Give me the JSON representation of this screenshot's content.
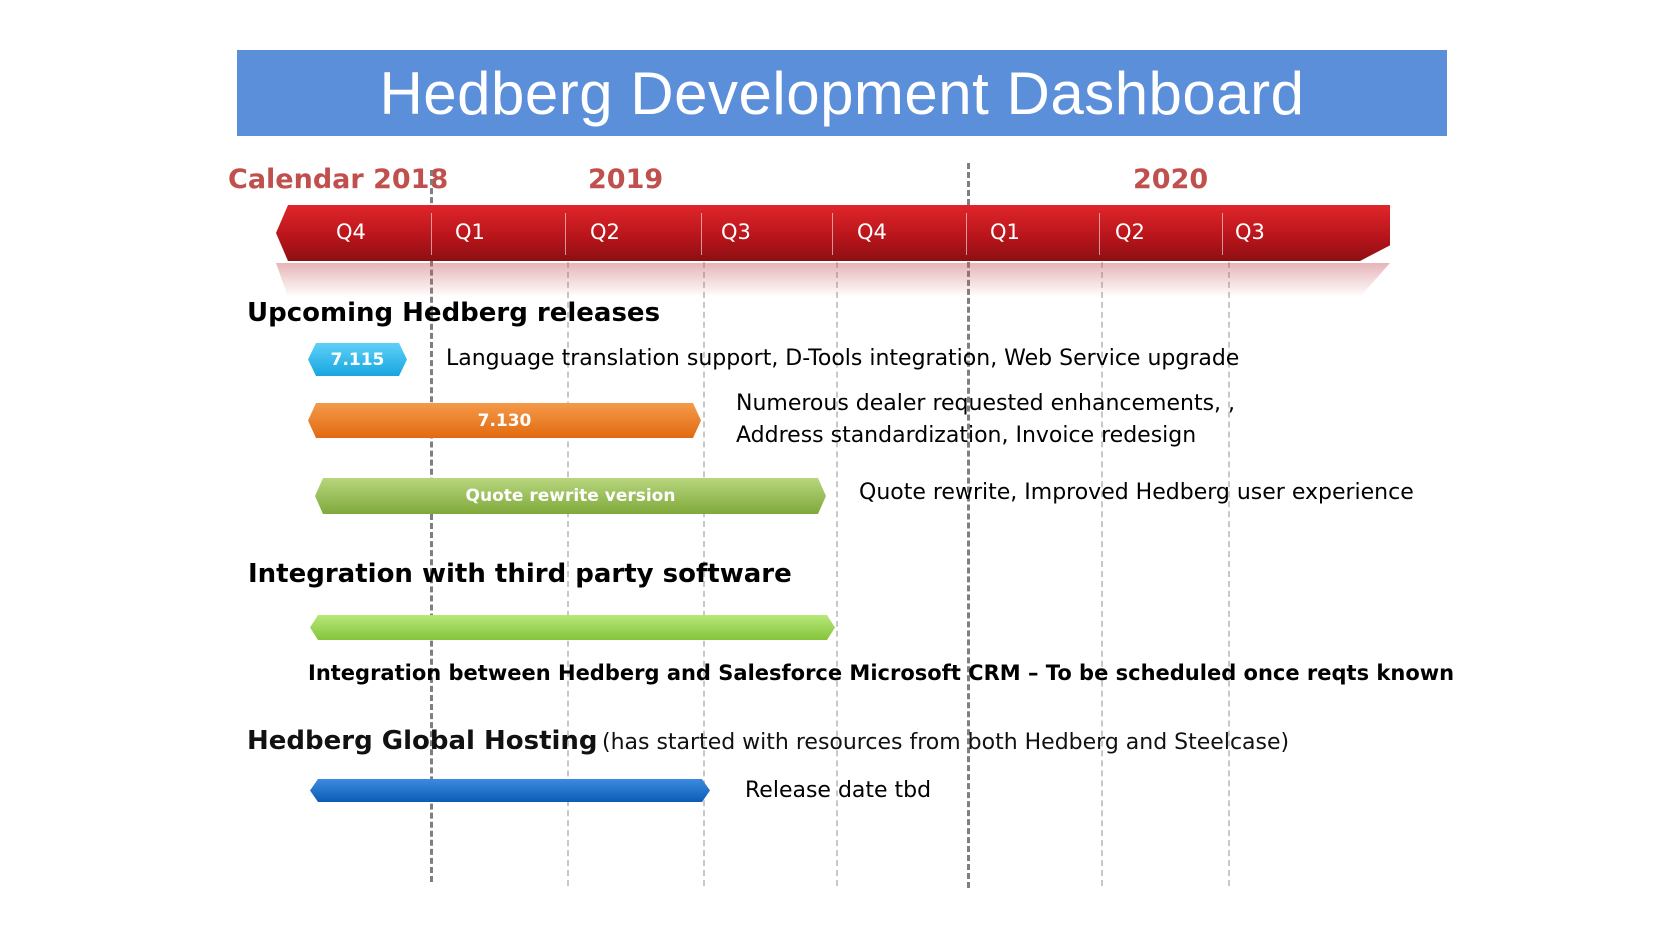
{
  "title": "Hedberg Development Dashboard",
  "timeline": {
    "years": [
      "Calendar 2018",
      "2019",
      "2020"
    ],
    "quarters": [
      "Q4",
      "Q1",
      "Q2",
      "Q3",
      "Q4",
      "Q1",
      "Q2",
      "Q3"
    ]
  },
  "sections": {
    "releases": {
      "heading": "Upcoming Hedberg releases",
      "items": [
        {
          "label": "7.115",
          "description": "Language translation support, D-Tools integration, Web Service upgrade",
          "color": "#17a6e0"
        },
        {
          "label": "7.130",
          "description_line1": "Numerous dealer requested enhancements, ,",
          "description_line2": "Address standardization, Invoice redesign",
          "color": "#e26a10"
        },
        {
          "label": "Quote rewrite version",
          "description": "Quote rewrite, Improved Hedberg user experience",
          "color": "#7fa93b"
        }
      ]
    },
    "integration": {
      "heading": "Integration with third party software",
      "description": "Integration between Hedberg and Salesforce Microsoft CRM – To be scheduled once reqts known",
      "color": "#86c43c"
    },
    "hosting": {
      "heading": "Hedberg Global Hosting",
      "note": "(has started with resources from both Hedberg and Steelcase)",
      "description": "Release date tbd",
      "color": "#0c5cb5"
    }
  },
  "colors": {
    "banner": "#5b8fd9",
    "year_text": "#c0504d",
    "timeline": "#b5141a"
  }
}
